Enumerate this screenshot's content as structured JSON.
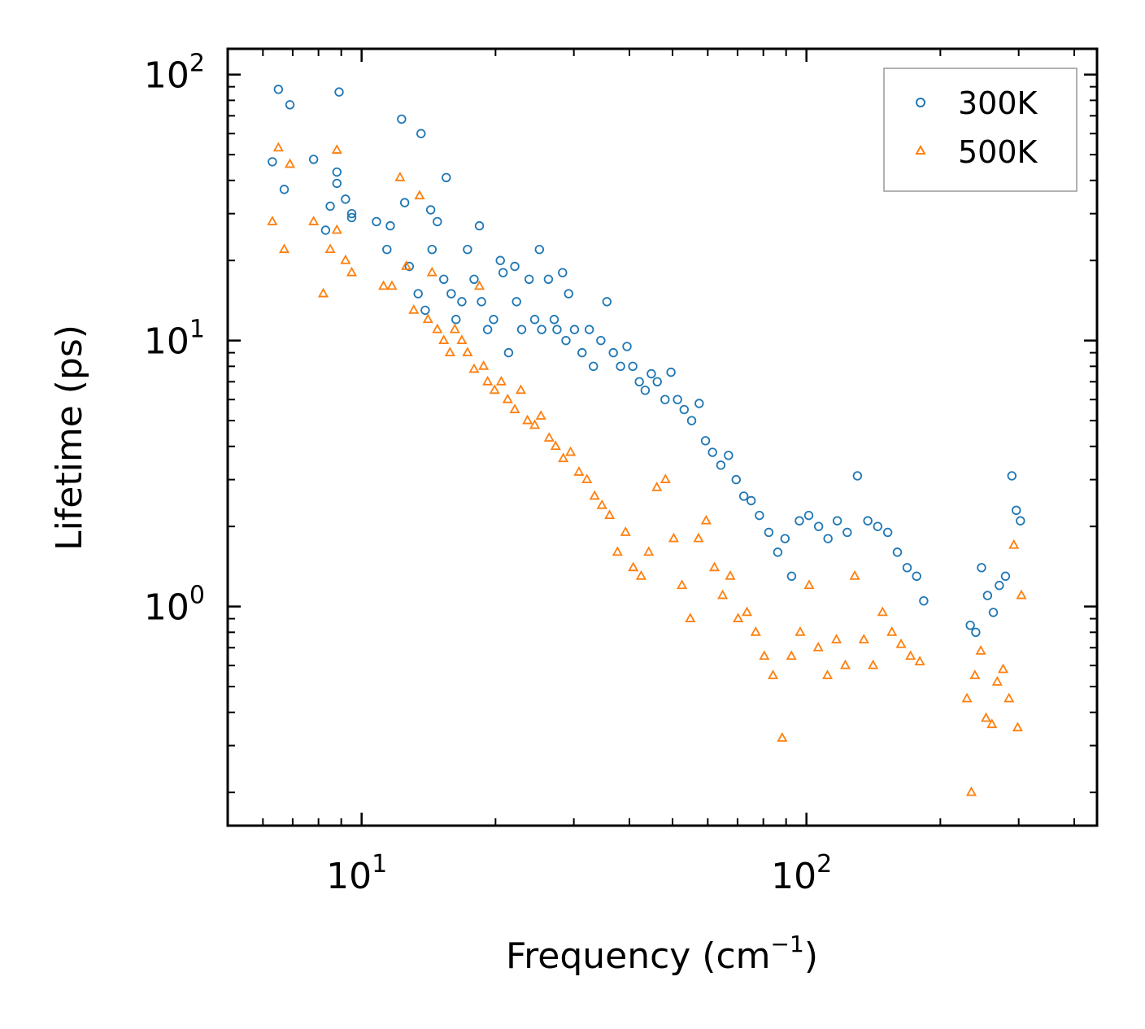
{
  "chart_data": {
    "type": "scatter",
    "xscale": "log",
    "yscale": "log",
    "xlim": [
      5,
      450
    ],
    "ylim": [
      0.15,
      125
    ],
    "xlabel": {
      "main": "Frequency (cm",
      "sup": "−1",
      "close": ")"
    },
    "ylabel": "Lifetime (ps)",
    "x_major_ticks": [
      {
        "value": 10,
        "base": "10",
        "exp": "1"
      },
      {
        "value": 100,
        "base": "10",
        "exp": "2"
      }
    ],
    "y_major_ticks": [
      {
        "value": 1,
        "base": "10",
        "exp": "0"
      },
      {
        "value": 10,
        "base": "10",
        "exp": "1"
      },
      {
        "value": 100,
        "base": "10",
        "exp": "2"
      }
    ],
    "legend_position": "top-right",
    "series": [
      {
        "name": "300K",
        "marker": "circle",
        "color": "#1f77b4",
        "points": [
          [
            6.3,
            47
          ],
          [
            6.5,
            88
          ],
          [
            6.7,
            37
          ],
          [
            6.9,
            77
          ],
          [
            7.8,
            48
          ],
          [
            8.3,
            26
          ],
          [
            8.5,
            32
          ],
          [
            8.8,
            39
          ],
          [
            8.8,
            43
          ],
          [
            8.9,
            86
          ],
          [
            9.2,
            34
          ],
          [
            9.5,
            30
          ],
          [
            9.5,
            29
          ],
          [
            10.8,
            28
          ],
          [
            11.4,
            22
          ],
          [
            11.6,
            27
          ],
          [
            12.3,
            68
          ],
          [
            12.5,
            33
          ],
          [
            12.8,
            19
          ],
          [
            13.4,
            15
          ],
          [
            13.6,
            60
          ],
          [
            13.9,
            13
          ],
          [
            14.3,
            31
          ],
          [
            14.4,
            22
          ],
          [
            14.8,
            28
          ],
          [
            15.3,
            17
          ],
          [
            15.5,
            41
          ],
          [
            15.9,
            15
          ],
          [
            16.3,
            12
          ],
          [
            16.8,
            14
          ],
          [
            17.3,
            22
          ],
          [
            17.9,
            17
          ],
          [
            18.4,
            27
          ],
          [
            18.6,
            14
          ],
          [
            19.2,
            11
          ],
          [
            19.8,
            12
          ],
          [
            20.5,
            20
          ],
          [
            20.8,
            18
          ],
          [
            21.4,
            9
          ],
          [
            22.1,
            19
          ],
          [
            22.3,
            14
          ],
          [
            22.9,
            11
          ],
          [
            23.8,
            17
          ],
          [
            24.5,
            12
          ],
          [
            25.1,
            22
          ],
          [
            25.4,
            11
          ],
          [
            26.3,
            17
          ],
          [
            27.1,
            12
          ],
          [
            27.5,
            11
          ],
          [
            28.3,
            18
          ],
          [
            28.8,
            10
          ],
          [
            29.2,
            15
          ],
          [
            30.1,
            11
          ],
          [
            31.3,
            9
          ],
          [
            32.5,
            11
          ],
          [
            33.2,
            8
          ],
          [
            34.5,
            10
          ],
          [
            35.6,
            14
          ],
          [
            36.8,
            9
          ],
          [
            38.2,
            8
          ],
          [
            39.5,
            9.5
          ],
          [
            40.7,
            8
          ],
          [
            42.1,
            7
          ],
          [
            43.4,
            6.5
          ],
          [
            44.8,
            7.5
          ],
          [
            46.2,
            7
          ],
          [
            48.1,
            6
          ],
          [
            49.6,
            7.6
          ],
          [
            51.3,
            6
          ],
          [
            53.1,
            5.5
          ],
          [
            55.2,
            5
          ],
          [
            57.4,
            5.8
          ],
          [
            59.3,
            4.2
          ],
          [
            61.5,
            3.8
          ],
          [
            64.2,
            3.4
          ],
          [
            66.8,
            3.7
          ],
          [
            69.5,
            3
          ],
          [
            72.3,
            2.6
          ],
          [
            75.1,
            2.5
          ],
          [
            78.4,
            2.2
          ],
          [
            82.3,
            1.9
          ],
          [
            86.2,
            1.6
          ],
          [
            89.5,
            1.8
          ],
          [
            92.6,
            1.3
          ],
          [
            96.4,
            2.1
          ],
          [
            101.2,
            2.2
          ],
          [
            106.5,
            2
          ],
          [
            111.8,
            1.8
          ],
          [
            117.3,
            2.1
          ],
          [
            123.5,
            1.9
          ],
          [
            130.2,
            3.1
          ],
          [
            137.4,
            2.1
          ],
          [
            144.6,
            2
          ],
          [
            152.3,
            1.9
          ],
          [
            160.1,
            1.6
          ],
          [
            168.4,
            1.4
          ],
          [
            176.9,
            1.3
          ],
          [
            183.5,
            1.05
          ],
          [
            233.5,
            0.85
          ],
          [
            240.2,
            0.8
          ],
          [
            247.5,
            1.4
          ],
          [
            255.3,
            1.1
          ],
          [
            263.1,
            0.95
          ],
          [
            271.4,
            1.2
          ],
          [
            280.2,
            1.3
          ],
          [
            289.6,
            3.1
          ],
          [
            296.3,
            2.3
          ],
          [
            302.7,
            2.1
          ]
        ]
      },
      {
        "name": "500K",
        "marker": "triangle",
        "color": "#ff7f0e",
        "points": [
          [
            6.3,
            28
          ],
          [
            6.5,
            53
          ],
          [
            6.7,
            22
          ],
          [
            6.9,
            46
          ],
          [
            7.8,
            28
          ],
          [
            8.2,
            15
          ],
          [
            8.5,
            22
          ],
          [
            8.8,
            52
          ],
          [
            8.8,
            26
          ],
          [
            9.2,
            20
          ],
          [
            9.5,
            18
          ],
          [
            11.2,
            16
          ],
          [
            11.7,
            16
          ],
          [
            12.2,
            41
          ],
          [
            12.6,
            19
          ],
          [
            13.1,
            13
          ],
          [
            13.5,
            35
          ],
          [
            14.1,
            12
          ],
          [
            14.4,
            18
          ],
          [
            14.8,
            11
          ],
          [
            15.3,
            10
          ],
          [
            15.8,
            9
          ],
          [
            16.2,
            11
          ],
          [
            16.8,
            10
          ],
          [
            17.3,
            9
          ],
          [
            17.9,
            7.8
          ],
          [
            18.4,
            16
          ],
          [
            18.8,
            8
          ],
          [
            19.2,
            7
          ],
          [
            19.9,
            6.5
          ],
          [
            20.6,
            7
          ],
          [
            21.3,
            6
          ],
          [
            22.1,
            5.5
          ],
          [
            22.8,
            6.5
          ],
          [
            23.6,
            5
          ],
          [
            24.5,
            4.8
          ],
          [
            25.3,
            5.2
          ],
          [
            26.4,
            4.3
          ],
          [
            27.3,
            4
          ],
          [
            28.4,
            3.6
          ],
          [
            29.5,
            3.8
          ],
          [
            30.8,
            3.2
          ],
          [
            32.1,
            3
          ],
          [
            33.4,
            2.6
          ],
          [
            34.7,
            2.4
          ],
          [
            36.1,
            2.2
          ],
          [
            37.6,
            1.6
          ],
          [
            39.2,
            1.9
          ],
          [
            40.8,
            1.4
          ],
          [
            42.5,
            1.3
          ],
          [
            44.2,
            1.6
          ],
          [
            46.1,
            2.8
          ],
          [
            48.2,
            3
          ],
          [
            50.3,
            1.8
          ],
          [
            52.5,
            1.2
          ],
          [
            54.8,
            0.9
          ],
          [
            57.2,
            1.8
          ],
          [
            59.5,
            2.1
          ],
          [
            62.1,
            1.4
          ],
          [
            64.8,
            1.1
          ],
          [
            67.4,
            1.3
          ],
          [
            70.2,
            0.9
          ],
          [
            73.5,
            0.95
          ],
          [
            76.9,
            0.8
          ],
          [
            80.4,
            0.65
          ],
          [
            84.1,
            0.55
          ],
          [
            88.2,
            0.32
          ],
          [
            92.5,
            0.65
          ],
          [
            96.8,
            0.8
          ],
          [
            101.4,
            1.2
          ],
          [
            106.3,
            0.7
          ],
          [
            111.5,
            0.55
          ],
          [
            116.8,
            0.75
          ],
          [
            122.3,
            0.6
          ],
          [
            128.4,
            1.3
          ],
          [
            134.6,
            0.75
          ],
          [
            141.2,
            0.6
          ],
          [
            148.3,
            0.95
          ],
          [
            155.6,
            0.8
          ],
          [
            163.2,
            0.72
          ],
          [
            171.4,
            0.65
          ],
          [
            179.8,
            0.62
          ],
          [
            229.5,
            0.45
          ],
          [
            234.8,
            0.2
          ],
          [
            239.2,
            0.55
          ],
          [
            246.6,
            0.68
          ],
          [
            253.4,
            0.38
          ],
          [
            261.2,
            0.36
          ],
          [
            268.5,
            0.52
          ],
          [
            276.8,
            0.58
          ],
          [
            285.3,
            0.45
          ],
          [
            292.6,
            1.7
          ],
          [
            298.4,
            0.35
          ],
          [
            304.2,
            1.1
          ]
        ]
      }
    ]
  }
}
